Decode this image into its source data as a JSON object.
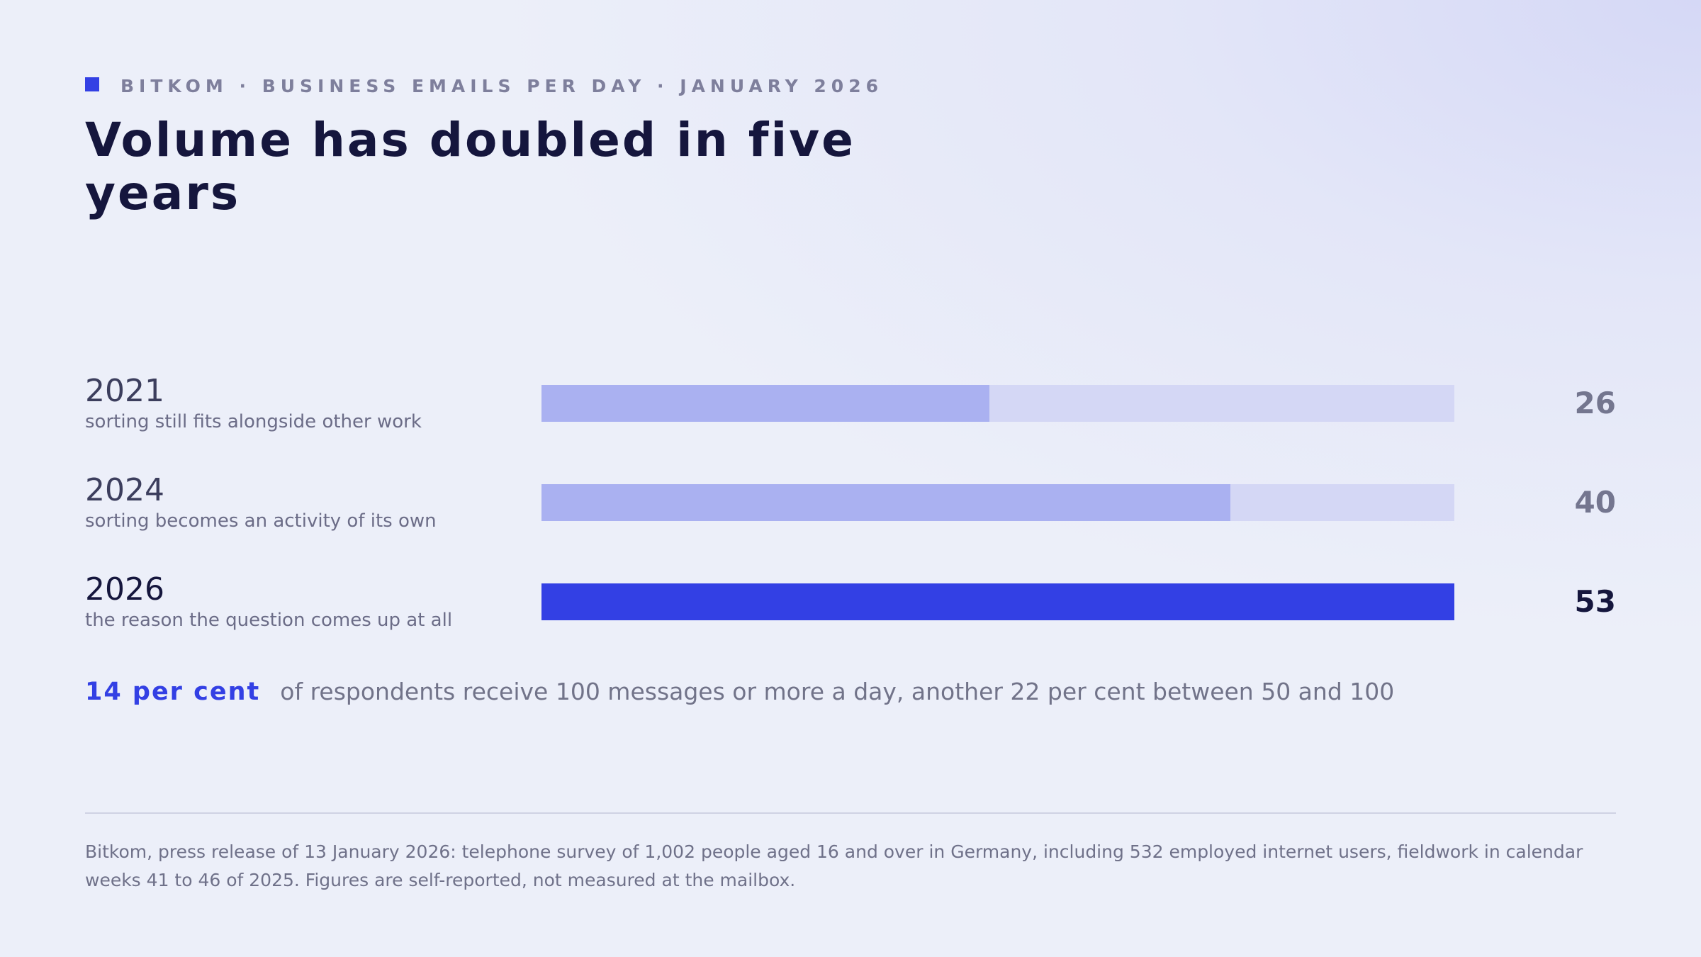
{
  "header": {
    "kicker": "BITKOM · BUSINESS EMAILS PER DAY · JANUARY 2026",
    "title": "Volume has doubled in five years"
  },
  "chart_data": {
    "type": "bar",
    "orientation": "horizontal",
    "categories": [
      "2021",
      "2024",
      "2026"
    ],
    "values": [
      26,
      40,
      53
    ],
    "value_labels": [
      "26",
      "40",
      "53"
    ],
    "captions": [
      "sorting still fits alongside other work",
      "sorting becomes an activity of its own",
      "the reason the question comes up at all"
    ],
    "xlim": [
      0,
      53
    ],
    "highlight_index": 2,
    "grid": false,
    "colors": {
      "bar": "#aab1f1",
      "track": "#d4d7f5",
      "highlight": "#3340e4"
    }
  },
  "stat": {
    "highlight": "14 per cent",
    "text": "of respondents receive 100 messages or more a day, another 22 per cent between 50 and 100"
  },
  "footer": {
    "source": "Bitkom, press release of 13 January 2026: telephone survey of 1,002 people aged 16 and over in Germany, including 532 employed internet users, fieldwork in calendar weeks 41 to 46 of 2025. Figures are self-reported, not measured at the mailbox."
  },
  "colors": {
    "accent": "#3340e4",
    "heading": "#15163d",
    "muted": "#7e7f9c"
  }
}
